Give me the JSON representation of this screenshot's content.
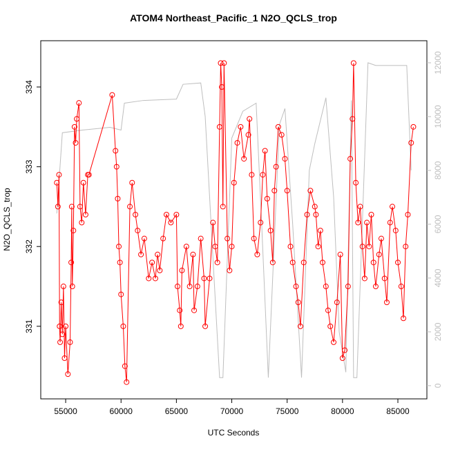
{
  "chart_data": {
    "type": "line",
    "title": "ATOM4 Northeast_Pacific_1 N2O_QCLS_trop",
    "xlabel": "UTC Seconds",
    "ylabel": "N2O_QCLS_trop",
    "xlim": [
      52750,
      87620
    ],
    "ylim": [
      330.09,
      334.58
    ],
    "y2lim": [
      -490,
      12820
    ],
    "xticks": [
      55000,
      60000,
      65000,
      70000,
      75000,
      80000,
      85000
    ],
    "yticks": [
      331,
      332,
      333,
      334
    ],
    "y2ticks": [
      0,
      2000,
      4000,
      6000,
      8000,
      10000,
      12000
    ],
    "series": [
      {
        "color": "#ff0000",
        "marker": "o",
        "x": [
          54200,
          54300,
          54400,
          54450,
          54500,
          54600,
          54700,
          54800,
          54900,
          55000,
          55200,
          55400,
          55500,
          55550,
          55600,
          55700,
          55800,
          55900,
          56000,
          56200,
          56300,
          56450,
          56600,
          56800,
          57000,
          57100,
          59200,
          59500,
          59600,
          59700,
          59800,
          59900,
          60000,
          60200,
          60350,
          60500,
          60800,
          61000,
          61300,
          61500,
          61800,
          62100,
          62500,
          62800,
          63100,
          63300,
          63500,
          63800,
          64100,
          64500,
          65000,
          65100,
          65300,
          65400,
          65500,
          65900,
          66200,
          66500,
          66600,
          66900,
          67200,
          67500,
          67600,
          68000,
          68300,
          68500,
          68700,
          68900,
          69000,
          69100,
          69200,
          69300,
          69600,
          69800,
          70000,
          70200,
          70500,
          70800,
          71100,
          71500,
          71600,
          71800,
          72000,
          72300,
          72600,
          72800,
          73000,
          73200,
          73500,
          73700,
          73850,
          74000,
          74200,
          74500,
          74800,
          75000,
          75300,
          75500,
          75800,
          76000,
          76200,
          76500,
          76800,
          77100,
          77500,
          77600,
          77800,
          78000,
          78200,
          78500,
          78700,
          78900,
          79200,
          79500,
          79800,
          80000,
          80200,
          80500,
          80700,
          80900,
          81000,
          81200,
          81400,
          81600,
          81800,
          82000,
          82200,
          82400,
          82600,
          82800,
          83000,
          83300,
          83500,
          83800,
          84000,
          84300,
          84500,
          84800,
          85000,
          85300,
          85500,
          85700,
          85900,
          86200,
          86400
        ],
        "values": [
          332.8,
          332.5,
          332.9,
          331.0,
          330.8,
          331.3,
          330.9,
          331.5,
          330.6,
          331.0,
          330.4,
          330.8,
          331.8,
          332.5,
          331.5,
          332.2,
          333.5,
          333.3,
          333.6,
          333.8,
          332.5,
          332.3,
          332.8,
          332.4,
          332.9,
          332.9,
          333.9,
          333.2,
          333.0,
          332.6,
          332.0,
          331.8,
          331.4,
          331.0,
          330.5,
          330.3,
          332.5,
          332.8,
          332.4,
          332.2,
          331.9,
          332.1,
          331.6,
          331.8,
          331.6,
          331.9,
          331.7,
          332.1,
          332.4,
          332.3,
          332.4,
          331.5,
          331.2,
          331.0,
          331.7,
          332.0,
          331.5,
          331.9,
          331.2,
          331.5,
          332.1,
          331.6,
          331.0,
          331.6,
          332.3,
          332.0,
          331.8,
          333.5,
          334.3,
          334.0,
          332.5,
          334.3,
          332.1,
          331.7,
          332.0,
          332.8,
          333.3,
          333.5,
          333.1,
          333.4,
          333.6,
          332.9,
          332.1,
          331.9,
          332.3,
          332.9,
          333.2,
          332.6,
          332.2,
          331.8,
          332.7,
          333.0,
          333.5,
          333.4,
          333.1,
          332.7,
          332.0,
          331.8,
          331.5,
          331.3,
          331.0,
          331.8,
          332.4,
          332.7,
          332.5,
          332.4,
          332.0,
          332.2,
          331.8,
          331.5,
          331.2,
          331.0,
          330.8,
          331.3,
          331.9,
          330.6,
          330.7,
          331.5,
          333.1,
          333.6,
          334.3,
          332.8,
          332.3,
          332.5,
          332.0,
          331.6,
          332.3,
          332.0,
          332.4,
          331.8,
          331.5,
          331.9,
          332.1,
          331.6,
          331.3,
          332.3,
          332.5,
          332.2,
          331.8,
          331.5,
          331.1,
          332.0,
          332.4,
          333.3,
          333.5
        ]
      },
      {
        "color": "#bebebe",
        "axis": "y2",
        "x": [
          54200,
          54700,
          56500,
          59000,
          60000,
          60300,
          62000,
          65000,
          65600,
          67200,
          67600,
          68400,
          68900,
          69200,
          70000,
          71000,
          72200,
          72700,
          73300,
          74300,
          74800,
          75500,
          76300,
          77000,
          77500,
          78500,
          79200,
          79700,
          80300,
          80800,
          81000,
          81300,
          82300,
          83000,
          85800,
          86200
        ],
        "values": [
          6400,
          9400,
          9500,
          9600,
          9500,
          10500,
          10600,
          10650,
          11200,
          11250,
          10000,
          4000,
          300,
          300,
          9200,
          10200,
          10500,
          6000,
          300,
          9700,
          10300,
          6000,
          300,
          8000,
          9000,
          10700,
          7000,
          2000,
          500,
          10600,
          300,
          300,
          12000,
          11900,
          11900,
          8000
        ]
      }
    ]
  }
}
